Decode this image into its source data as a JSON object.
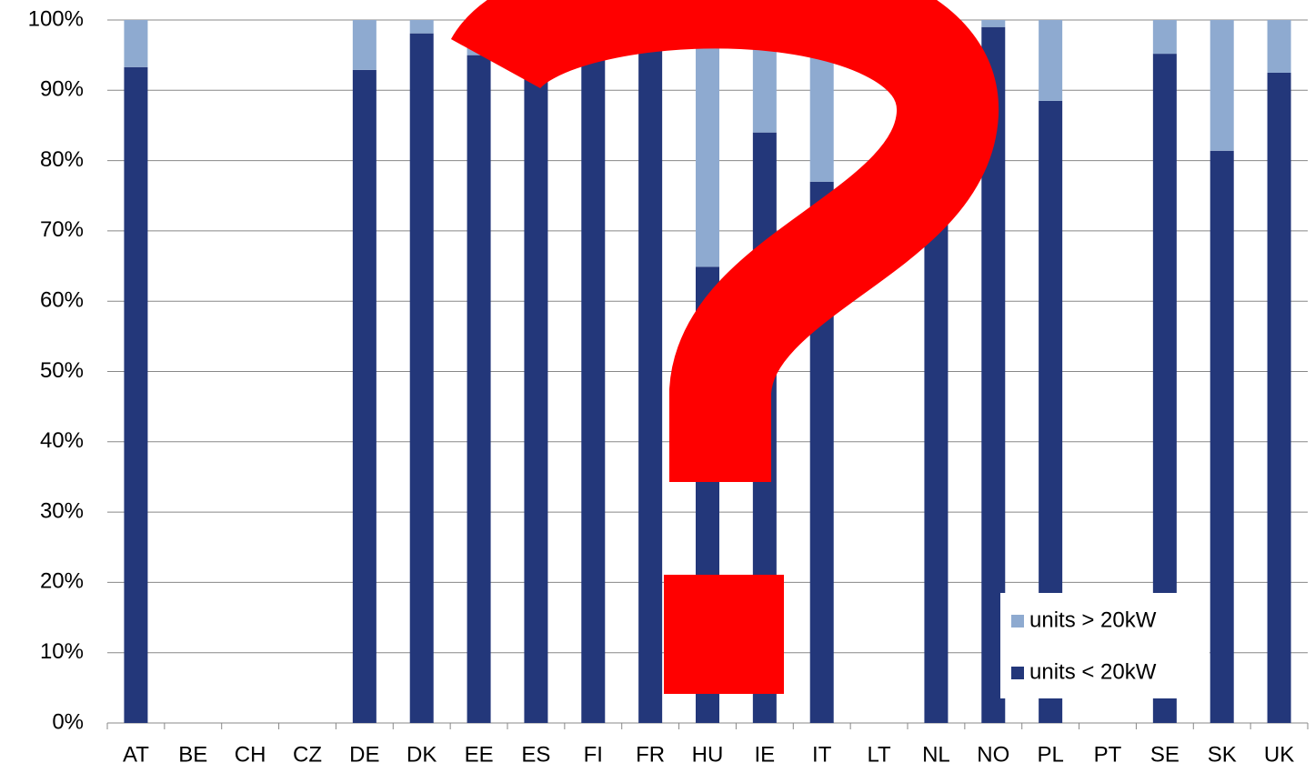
{
  "chart_data": {
    "type": "stacked_bar",
    "categories": [
      "AT",
      "BE",
      "CH",
      "CZ",
      "DE",
      "DK",
      "EE",
      "ES",
      "FI",
      "FR",
      "HU",
      "IE",
      "IT",
      "LT",
      "NL",
      "NO",
      "PL",
      "PT",
      "SE",
      "SK",
      "UK"
    ],
    "series": [
      {
        "name": "units < 20kW",
        "color": "#23377a",
        "values": [
          93.3,
          null,
          null,
          null,
          92.9,
          98.1,
          95,
          93,
          96.6,
          98.8,
          64.9,
          84,
          77,
          null,
          97,
          99,
          88.5,
          null,
          95.2,
          81.4,
          92.5
        ]
      },
      {
        "name": "units > 20kW",
        "color": "#8eaad0",
        "values": [
          6.7,
          null,
          null,
          null,
          7.1,
          1.9,
          5,
          7,
          3.4,
          1.2,
          35.1,
          16,
          23,
          null,
          3,
          1,
          11.5,
          null,
          4.8,
          18.6,
          7.5
        ]
      }
    ],
    "ylim": [
      0,
      100
    ],
    "yticks": [
      {
        "value": 0,
        "label": "0%"
      },
      {
        "value": 10,
        "label": "10%"
      },
      {
        "value": 20,
        "label": "20%"
      },
      {
        "value": 30,
        "label": "30%"
      },
      {
        "value": 40,
        "label": "40%"
      },
      {
        "value": 50,
        "label": "50%"
      },
      {
        "value": 60,
        "label": "60%"
      },
      {
        "value": 70,
        "label": "70%"
      },
      {
        "value": 80,
        "label": "80%"
      },
      {
        "value": 90,
        "label": "90%"
      },
      {
        "value": 100,
        "label": "100%"
      }
    ],
    "grid": true,
    "legend": "lower-right"
  }
}
